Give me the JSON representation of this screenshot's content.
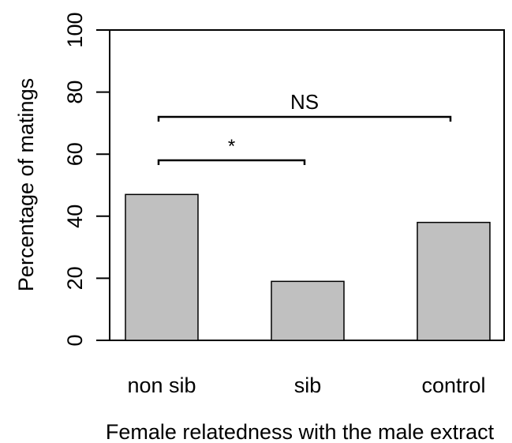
{
  "chart_data": {
    "type": "bar",
    "categories": [
      "non sib",
      "sib",
      "control"
    ],
    "values": [
      47,
      19,
      38
    ],
    "xlabel": "Female relatedness with the male extract",
    "ylabel": "Percentage of matings",
    "ylim": [
      0,
      100
    ],
    "yticks": [
      "0",
      "20",
      "40",
      "60",
      "80",
      "100"
    ],
    "grid": false,
    "bar_color": "#c0c0c0",
    "annotations": [
      {
        "label": "*",
        "from": "non sib",
        "to": "sib",
        "y": 58
      },
      {
        "label": "NS",
        "from": "non sib",
        "to": "control",
        "y": 72
      }
    ]
  }
}
